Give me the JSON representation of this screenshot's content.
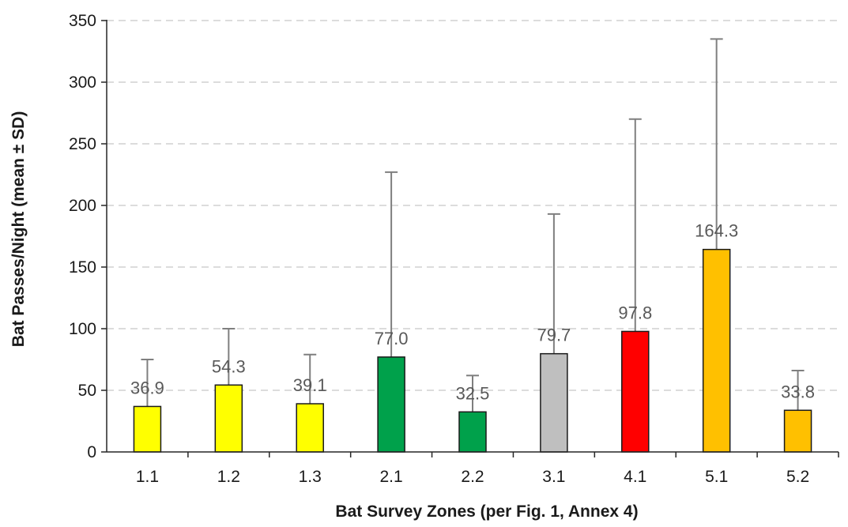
{
  "chart_data": {
    "type": "bar",
    "title": "",
    "xlabel": "Bat Survey Zones (per Fig. 1, Annex 4)",
    "ylabel": "Bat Passes/Night (mean ± SD)",
    "ylim": [
      0,
      350
    ],
    "yticks": [
      0,
      50,
      100,
      150,
      200,
      250,
      300,
      350
    ],
    "grid": true,
    "legend": "none",
    "categories": [
      "1.1",
      "1.2",
      "1.3",
      "2.1",
      "2.2",
      "3.1",
      "4.1",
      "5.1",
      "5.2"
    ],
    "values": [
      36.9,
      54.3,
      39.1,
      77.0,
      32.5,
      79.7,
      97.8,
      164.3,
      33.8
    ],
    "data_labels": [
      "36.9",
      "54.3",
      "39.1",
      "77.0",
      "32.5",
      "79.7",
      "97.8",
      "164.3",
      "33.8"
    ],
    "error_upper": [
      75,
      100,
      79,
      227,
      62,
      193,
      270,
      335,
      66
    ],
    "colors": [
      "#ffff00",
      "#ffff00",
      "#ffff00",
      "#00a14b",
      "#00a14b",
      "#bfbfbf",
      "#ff0000",
      "#ffc000",
      "#ffc000"
    ]
  }
}
